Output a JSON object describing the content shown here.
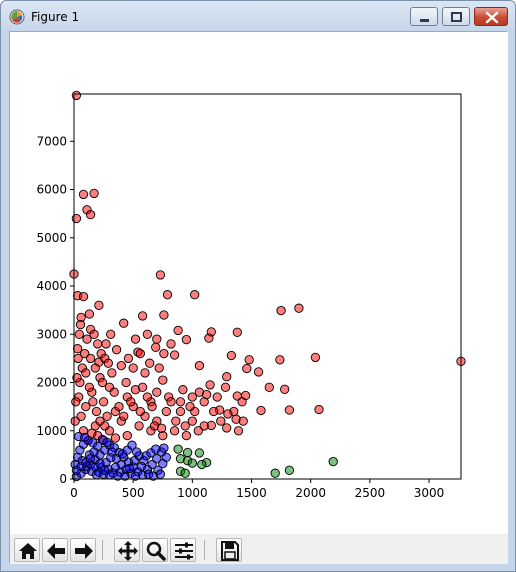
{
  "window": {
    "title": "Figure 1",
    "icon": "matplotlib-icon",
    "controls": [
      "minimize-icon",
      "maximize-icon",
      "close-icon"
    ]
  },
  "toolbar": {
    "buttons": [
      {
        "name": "home-button",
        "icon": "home-icon"
      },
      {
        "name": "back-button",
        "icon": "arrow-left-icon"
      },
      {
        "name": "forward-button",
        "icon": "arrow-right-icon"
      },
      {
        "name": "pan-button",
        "icon": "move-icon"
      },
      {
        "name": "zoom-button",
        "icon": "magnifier-icon"
      },
      {
        "name": "configure-subplots-button",
        "icon": "sliders-icon"
      },
      {
        "name": "save-button",
        "icon": "floppy-disk-icon"
      }
    ]
  },
  "chart_data": {
    "type": "scatter",
    "xlim": [
      0,
      3270
    ],
    "ylim": [
      0,
      7980
    ],
    "x_ticks": [
      0,
      500,
      1000,
      1500,
      2000,
      2500,
      3000
    ],
    "y_ticks": [
      0,
      1000,
      2000,
      3000,
      4000,
      5000,
      6000,
      7000
    ],
    "x_tick_labels": [
      "0",
      "500",
      "1000",
      "1500",
      "2000",
      "2500",
      "3000"
    ],
    "y_tick_labels": [
      "0",
      "1000",
      "2000",
      "3000",
      "4000",
      "5000",
      "6000",
      "7000"
    ],
    "grid": false,
    "legend": "none",
    "series": [
      {
        "color": "#ff0000",
        "points": [
          [
            20,
            7950
          ],
          [
            80,
            5900
          ],
          [
            170,
            5920
          ],
          [
            110,
            5580
          ],
          [
            140,
            5480
          ],
          [
            20,
            5400
          ],
          [
            0,
            4250
          ],
          [
            730,
            4230
          ],
          [
            30,
            3800
          ],
          [
            80,
            3780
          ],
          [
            790,
            3820
          ],
          [
            1020,
            3820
          ],
          [
            580,
            3380
          ],
          [
            760,
            3400
          ],
          [
            1750,
            3490
          ],
          [
            1900,
            3540
          ],
          [
            130,
            3420
          ],
          [
            60,
            3350
          ],
          [
            210,
            3600
          ],
          [
            420,
            3230
          ],
          [
            880,
            3080
          ],
          [
            1160,
            3050
          ],
          [
            1380,
            3040
          ],
          [
            620,
            3000
          ],
          [
            270,
            2800
          ],
          [
            360,
            2680
          ],
          [
            540,
            2630
          ],
          [
            690,
            2730
          ],
          [
            950,
            2890
          ],
          [
            1140,
            2920
          ],
          [
            1330,
            2560
          ],
          [
            1480,
            2470
          ],
          [
            1740,
            2470
          ],
          [
            2040,
            2520
          ],
          [
            3270,
            2440
          ],
          [
            850,
            2570
          ],
          [
            1060,
            2350
          ],
          [
            400,
            2350
          ],
          [
            210,
            2420
          ],
          [
            1460,
            2290
          ],
          [
            1560,
            2220
          ],
          [
            180,
            2300
          ],
          [
            600,
            2200
          ],
          [
            750,
            2050
          ],
          [
            920,
            1850
          ],
          [
            1290,
            2120
          ],
          [
            1650,
            1900
          ],
          [
            1780,
            1860
          ],
          [
            1150,
            1950
          ],
          [
            1380,
            1720
          ],
          [
            1450,
            1730
          ],
          [
            1820,
            1430
          ],
          [
            2070,
            1440
          ],
          [
            1230,
            1430
          ],
          [
            1580,
            1420
          ],
          [
            1370,
            1240
          ],
          [
            1290,
            1060
          ],
          [
            1160,
            1110
          ],
          [
            1390,
            1000
          ],
          [
            300,
            1900
          ],
          [
            450,
            1700
          ],
          [
            500,
            1500
          ],
          [
            650,
            1600
          ],
          [
            700,
            1800
          ],
          [
            800,
            1700
          ],
          [
            900,
            1400
          ],
          [
            1000,
            1200
          ],
          [
            1100,
            1100
          ],
          [
            600,
            1300
          ],
          [
            400,
            1200
          ],
          [
            300,
            1000
          ],
          [
            200,
            900
          ],
          [
            120,
            800
          ],
          [
            100,
            1500
          ],
          [
            150,
            1800
          ],
          [
            250,
            1600
          ],
          [
            350,
            1400
          ],
          [
            550,
            1100
          ],
          [
            650,
            1000
          ],
          [
            750,
            900
          ],
          [
            850,
            1000
          ],
          [
            950,
            900
          ],
          [
            1050,
            1000
          ],
          [
            220,
            2100
          ],
          [
            320,
            2200
          ],
          [
            440,
            2000
          ],
          [
            520,
            1850
          ],
          [
            480,
            1600
          ],
          [
            380,
            1500
          ],
          [
            280,
            1300
          ],
          [
            180,
            1100
          ],
          [
            80,
            1000
          ],
          [
            60,
            1300
          ],
          [
            40,
            1700
          ],
          [
            50,
            2000
          ],
          [
            70,
            2300
          ],
          [
            90,
            2600
          ],
          [
            110,
            2900
          ],
          [
            140,
            3100
          ],
          [
            170,
            3000
          ],
          [
            200,
            2800
          ],
          [
            230,
            2600
          ],
          [
            260,
            2500
          ],
          [
            290,
            2400
          ],
          [
            100,
            2200
          ],
          [
            130,
            1900
          ],
          [
            160,
            1600
          ],
          [
            190,
            1400
          ],
          [
            220,
            1200
          ],
          [
            260,
            1100
          ],
          [
            700,
            1200
          ],
          [
            780,
            1400
          ],
          [
            860,
            1200
          ],
          [
            940,
            1100
          ],
          [
            1020,
            1400
          ],
          [
            1100,
            1600
          ],
          [
            1180,
            1400
          ],
          [
            1240,
            1200
          ],
          [
            1000,
            1700
          ],
          [
            820,
            1600
          ],
          [
            660,
            1500
          ],
          [
            580,
            1900
          ],
          [
            500,
            2300
          ],
          [
            460,
            2500
          ],
          [
            640,
            2400
          ],
          [
            720,
            2300
          ],
          [
            1060,
            1800
          ],
          [
            1120,
            1750
          ],
          [
            560,
            2600
          ],
          [
            760,
            2600
          ],
          [
            30,
            2700
          ],
          [
            10,
            1200
          ],
          [
            15,
            1600
          ],
          [
            25,
            2100
          ],
          [
            35,
            2500
          ],
          [
            45,
            3000
          ],
          [
            55,
            3200
          ],
          [
            140,
            2500
          ],
          [
            240,
            2000
          ],
          [
            340,
            1800
          ],
          [
            420,
            1300
          ],
          [
            620,
            1700
          ],
          [
            680,
            1100
          ],
          [
            900,
            1600
          ],
          [
            980,
            1500
          ],
          [
            1210,
            1700
          ],
          [
            1280,
            1900
          ],
          [
            1350,
            1400
          ],
          [
            1430,
            1200
          ],
          [
            310,
            3000
          ],
          [
            520,
            2900
          ],
          [
            700,
            2900
          ],
          [
            820,
            2800
          ],
          [
            560,
            1400
          ],
          [
            740,
            1050
          ],
          [
            450,
            900
          ],
          [
            350,
            850
          ],
          [
            250,
            800
          ],
          [
            150,
            950
          ],
          [
            1300,
            1350
          ],
          [
            1420,
            1600
          ]
        ]
      },
      {
        "color": "#0000ff",
        "points": [
          [
            20,
            50
          ],
          [
            60,
            120
          ],
          [
            100,
            200
          ],
          [
            140,
            300
          ],
          [
            180,
            400
          ],
          [
            220,
            500
          ],
          [
            260,
            600
          ],
          [
            300,
            700
          ],
          [
            340,
            650
          ],
          [
            380,
            550
          ],
          [
            420,
            450
          ],
          [
            460,
            350
          ],
          [
            500,
            250
          ],
          [
            540,
            150
          ],
          [
            580,
            80
          ],
          [
            620,
            200
          ],
          [
            660,
            300
          ],
          [
            700,
            420
          ],
          [
            740,
            560
          ],
          [
            760,
            640
          ],
          [
            50,
            600
          ],
          [
            80,
            720
          ],
          [
            120,
            800
          ],
          [
            160,
            750
          ],
          [
            200,
            680
          ],
          [
            240,
            820
          ],
          [
            280,
            760
          ],
          [
            320,
            560
          ],
          [
            360,
            420
          ],
          [
            400,
            300
          ],
          [
            440,
            200
          ],
          [
            480,
            120
          ],
          [
            520,
            60
          ],
          [
            10,
            300
          ],
          [
            30,
            450
          ],
          [
            70,
            380
          ],
          [
            110,
            260
          ],
          [
            150,
            160
          ],
          [
            190,
            90
          ],
          [
            230,
            240
          ],
          [
            270,
            340
          ],
          [
            310,
            440
          ],
          [
            350,
            240
          ],
          [
            390,
            140
          ],
          [
            430,
            60
          ],
          [
            470,
            220
          ],
          [
            510,
            380
          ],
          [
            550,
            480
          ],
          [
            590,
            380
          ],
          [
            630,
            100
          ],
          [
            670,
            60
          ],
          [
            710,
            180
          ],
          [
            750,
            320
          ],
          [
            780,
            450
          ],
          [
            40,
            880
          ],
          [
            90,
            860
          ],
          [
            130,
            500
          ],
          [
            170,
            560
          ],
          [
            210,
            140
          ],
          [
            250,
            100
          ],
          [
            290,
            200
          ],
          [
            330,
            120
          ],
          [
            370,
            60
          ],
          [
            410,
            520
          ],
          [
            450,
            600
          ],
          [
            490,
            700
          ],
          [
            530,
            560
          ],
          [
            570,
            260
          ],
          [
            610,
            480
          ],
          [
            650,
            540
          ],
          [
            690,
            620
          ],
          [
            730,
            100
          ],
          [
            20,
            180
          ],
          [
            60,
            260
          ],
          [
            100,
            340
          ],
          [
            140,
            420
          ],
          [
            180,
            250
          ],
          [
            220,
            320
          ],
          [
            260,
            180
          ],
          [
            300,
            90
          ]
        ]
      },
      {
        "color": "#008000",
        "points": [
          [
            880,
            620
          ],
          [
            960,
            550
          ],
          [
            1060,
            540
          ],
          [
            900,
            420
          ],
          [
            960,
            380
          ],
          [
            1000,
            330
          ],
          [
            900,
            160
          ],
          [
            940,
            120
          ],
          [
            1120,
            340
          ],
          [
            1080,
            300
          ],
          [
            1700,
            120
          ],
          [
            1820,
            180
          ],
          [
            2190,
            360
          ]
        ]
      }
    ]
  }
}
